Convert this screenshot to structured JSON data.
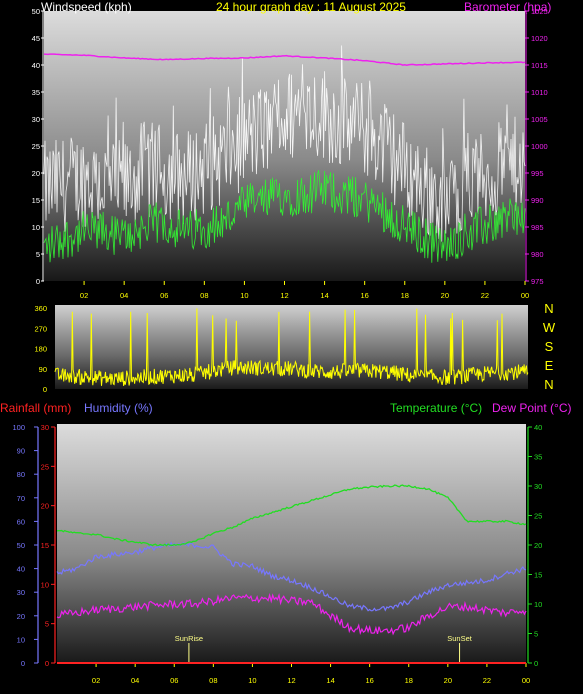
{
  "colors": {
    "wind_avg": "#33ee33",
    "wind_gust": "#ffffff",
    "barometer": "#ee22ee",
    "direction": "#ffff00",
    "rain": "#ff2222",
    "humidity": "#7777ff",
    "temperature": "#22dd22",
    "dewpoint": "#ee22ee",
    "axis_tick_x": "#ffff00",
    "axis_left": "#ffffff",
    "axis_rain": "#ff2222",
    "axis_hum": "#7777ff",
    "axis_temp": "#22dd22",
    "axis_baro": "#ee22ee",
    "sun_marker": "#ffff88"
  },
  "chart_data": [
    {
      "type": "line",
      "title": "24 hour graph day : 11 August 2025",
      "ylabel": "Windspeed (kph)",
      "y2label": "Barometer (hpa)",
      "ylim": [
        0,
        50
      ],
      "y2lim": [
        975,
        1025
      ],
      "yticks": [
        "0",
        "5",
        "10",
        "15",
        "20",
        "25",
        "30",
        "35",
        "40",
        "45",
        "50"
      ],
      "y2ticks": [
        "975",
        "980",
        "985",
        "990",
        "995",
        "1000",
        "1005",
        "1010",
        "1015",
        "1020",
        "1025"
      ],
      "xlim": [
        0,
        24
      ],
      "xticks": [
        "02",
        "04",
        "06",
        "08",
        "10",
        "12",
        "14",
        "16",
        "18",
        "20",
        "22",
        "00"
      ],
      "series": [
        {
          "name": "Windspeed (kph)",
          "x": [
            0,
            1,
            2,
            3,
            4,
            5,
            6,
            7,
            8,
            9,
            10,
            11,
            12,
            13,
            14,
            15,
            16,
            17,
            18,
            19,
            20,
            21,
            22,
            23,
            24
          ],
          "values": [
            6,
            8,
            9,
            9,
            8,
            10,
            11,
            9,
            10,
            11,
            14,
            15,
            16,
            16,
            17,
            16,
            15,
            13,
            10,
            8,
            6,
            9,
            10,
            12,
            12
          ]
        },
        {
          "name": "Windspeed gust (kph)",
          "x": [
            0,
            1,
            2,
            3,
            4,
            5,
            6,
            7,
            8,
            9,
            10,
            11,
            12,
            13,
            14,
            15,
            16,
            17,
            18,
            19,
            20,
            21,
            22,
            23,
            24
          ],
          "values": [
            18,
            19,
            20,
            19,
            18,
            22,
            21,
            20,
            22,
            24,
            27,
            29,
            31,
            33,
            32,
            30,
            29,
            26,
            22,
            18,
            14,
            19,
            20,
            22,
            23
          ]
        },
        {
          "name": "Barometer (hpa)",
          "x": [
            0,
            2,
            4,
            6,
            8,
            10,
            12,
            14,
            16,
            18,
            20,
            22,
            24
          ],
          "values": [
            1017,
            1016.8,
            1016.3,
            1016,
            1016.2,
            1016.3,
            1016.7,
            1016.3,
            1015.8,
            1015,
            1015.2,
            1015.4,
            1015.5
          ]
        }
      ]
    },
    {
      "type": "scatter",
      "ylabel_right": [
        "N",
        "W",
        "S",
        "E",
        "N"
      ],
      "ylim": [
        0,
        360
      ],
      "yticks": [
        "0",
        "90",
        "180",
        "270",
        "360"
      ],
      "xlim": [
        0,
        24
      ],
      "series": [
        {
          "name": "Wind direction",
          "x": [
            0,
            1,
            2,
            3,
            4,
            5,
            6,
            7,
            8,
            9,
            10,
            11,
            12,
            13,
            14,
            15,
            16,
            17,
            18,
            19,
            20,
            21,
            22,
            23,
            24
          ],
          "values": [
            60,
            55,
            50,
            45,
            50,
            55,
            60,
            60,
            80,
            95,
            95,
            90,
            90,
            80,
            75,
            80,
            80,
            75,
            60,
            55,
            50,
            60,
            70,
            75,
            75
          ]
        }
      ]
    },
    {
      "type": "line",
      "legend_left": [
        "Rainfall (mm)",
        "Humidity (%)"
      ],
      "legend_right": [
        "Temperature (°C)",
        "Dew Point (°C)"
      ],
      "ylim_humidity": [
        0,
        100
      ],
      "yticks_humidity": [
        "0",
        "10",
        "20",
        "30",
        "40",
        "50",
        "60",
        "70",
        "80",
        "90",
        "100"
      ],
      "ylim_rain": [
        0,
        30
      ],
      "yticks_rain": [
        "0",
        "5",
        "10",
        "15",
        "20",
        "25",
        "30"
      ],
      "ylim_temp": [
        0,
        40
      ],
      "yticks_temp": [
        "0",
        "5",
        "10",
        "15",
        "20",
        "25",
        "30",
        "35",
        "40"
      ],
      "xlim": [
        0,
        24
      ],
      "xticks": [
        "02",
        "04",
        "06",
        "08",
        "10",
        "12",
        "14",
        "16",
        "18",
        "20",
        "22",
        "00"
      ],
      "annotations": [
        {
          "label": "SunRise",
          "x": 6.75
        },
        {
          "label": "SunSet",
          "x": 20.6
        }
      ],
      "series": [
        {
          "name": "Rainfall (mm)",
          "x": [
            0,
            24
          ],
          "values": [
            0,
            0
          ]
        },
        {
          "name": "Humidity (%)",
          "x": [
            0,
            1,
            2,
            3,
            4,
            5,
            6,
            7,
            8,
            9,
            10,
            11,
            12,
            13,
            14,
            15,
            16,
            17,
            18,
            19,
            20,
            21,
            22,
            23,
            24
          ],
          "values": [
            38,
            40,
            45,
            46,
            47,
            49,
            50,
            50,
            49,
            42,
            41,
            37,
            35,
            32,
            28,
            24,
            23,
            23,
            26,
            30,
            33,
            34,
            35,
            38,
            40
          ]
        },
        {
          "name": "Temperature (°C)",
          "x": [
            0,
            1,
            2,
            3,
            4,
            5,
            6,
            7,
            8,
            9,
            10,
            11,
            12,
            13,
            14,
            15,
            16,
            17,
            18,
            19,
            20,
            21,
            22,
            23,
            24
          ],
          "values": [
            22.5,
            22,
            21.8,
            21,
            20.5,
            20,
            20,
            20.5,
            22,
            23,
            24.5,
            25.5,
            26.5,
            27.5,
            28.5,
            29.5,
            29.8,
            30,
            30,
            29.5,
            28,
            24,
            24,
            24,
            23.5
          ]
        },
        {
          "name": "Dew Point (°C)",
          "x": [
            0,
            1,
            2,
            3,
            4,
            5,
            6,
            7,
            8,
            9,
            10,
            11,
            12,
            13,
            14,
            15,
            16,
            17,
            18,
            19,
            20,
            21,
            22,
            23,
            24
          ],
          "values": [
            8,
            8.5,
            9,
            9.2,
            9.5,
            9.8,
            10,
            10,
            10.5,
            11,
            11,
            11,
            10.5,
            10.3,
            8,
            6,
            5.5,
            5.5,
            6,
            8,
            9.5,
            9.5,
            9,
            8.5,
            9
          ]
        }
      ]
    }
  ]
}
